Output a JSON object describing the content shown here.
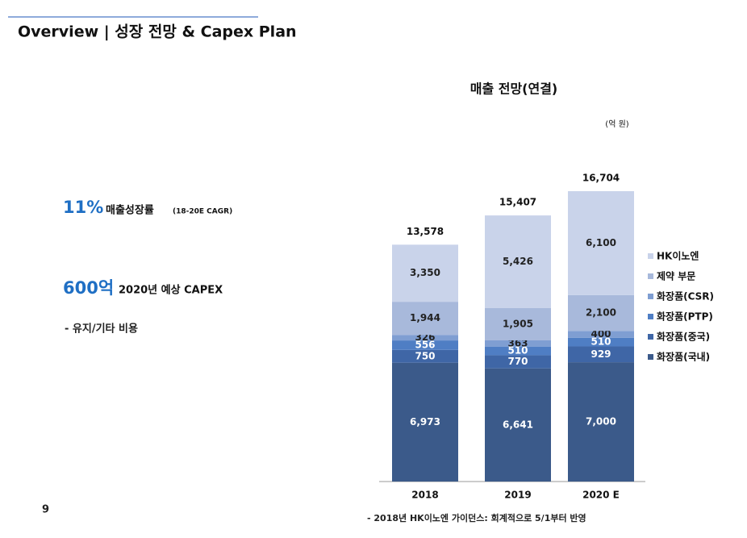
{
  "header": {
    "title": "Overview | 성장 전망 & Capex Plan"
  },
  "highlights": [
    {
      "figure": "11%",
      "label": "매출성장률",
      "note": "(18-20E CAGR)"
    },
    {
      "figure": "600억",
      "label": "2020년 예상 CAPEX",
      "bullet": "- 유지/기타 비용"
    }
  ],
  "footnote": "- 2018년 HK이노엔 가이던스: 회계적으로 5/1부터 반영",
  "page_number": "9",
  "chart_data": {
    "type": "stacked_bar",
    "title": "매출 전망(연결)",
    "unit": "(억 원)",
    "categories": [
      "2018",
      "2019",
      "2020 E"
    ],
    "series": [
      {
        "name": "화장품(국내)",
        "color": "#3b5a8a",
        "values": [
          6973,
          6641,
          7000
        ],
        "value_labels": [
          "6,973",
          "6,641",
          "7,000"
        ]
      },
      {
        "name": "화장품(중국)",
        "color": "#3f66a6",
        "values": [
          750,
          770,
          929
        ],
        "value_labels": [
          "750",
          "770",
          "929"
        ]
      },
      {
        "name": "화장품(PTP)",
        "color": "#4f7ec4",
        "values": [
          556,
          510,
          510
        ],
        "value_labels": [
          "556",
          "510",
          "510"
        ]
      },
      {
        "name": "화장품(CSR)",
        "color": "#7f9ed2",
        "values": [
          326,
          363,
          400
        ],
        "value_labels": [
          "326",
          "363",
          "400"
        ]
      },
      {
        "name": "제약 부문",
        "color": "#a8b9db",
        "values": [
          1944,
          1905,
          2100
        ],
        "value_labels": [
          "1,944",
          "1,905",
          "2,100"
        ]
      },
      {
        "name": "HK이노엔",
        "color": "#c9d3ea",
        "values": [
          3350,
          5426,
          6100
        ],
        "value_labels": [
          "3,350",
          "5,426",
          "6,100"
        ]
      }
    ],
    "totals": {
      "values": [
        13578,
        15407,
        16704
      ],
      "value_labels": [
        "13,578",
        "15,407",
        "16,704"
      ]
    }
  }
}
